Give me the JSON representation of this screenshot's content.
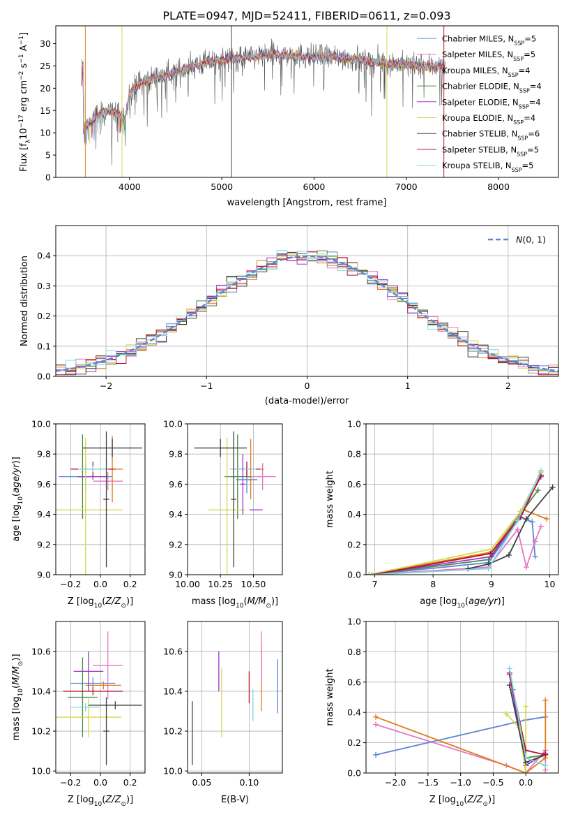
{
  "figure": {
    "title": "PLATE=0947, MJD=52411, FIBERID=0611, z=0.093"
  },
  "colors": {
    "chabrier_miles": "#5b84d6",
    "salpeter_miles": "#e377c2",
    "kroupa_miles": "#e07b1a",
    "chabrier_elodie": "#4c8a4c",
    "salpeter_elodie": "#9b30c8",
    "kroupa_elodie": "#d6d84a",
    "chabrier_stelib": "#404040",
    "salpeter_stelib": "#b2182b",
    "kroupa_stelib": "#7fd8e0"
  },
  "chart_data": [
    {
      "id": "spectrum",
      "type": "line",
      "xlabel": "wavelength [Angstrom, rest frame]",
      "ylabel": "Flux [f_λ 10^-17 erg cm^-2 s^-1 A^-1]",
      "xlim": [
        3200,
        8650
      ],
      "ylim": [
        0,
        34
      ],
      "xticks": [
        4000,
        5000,
        6000,
        7000,
        8000
      ],
      "yticks": [
        0,
        5,
        10,
        15,
        20,
        25,
        30
      ],
      "legend_position": "top-right",
      "legend": [
        {
          "key": "chabrier_miles",
          "label": "Chabrier MILES, N",
          "sub": "SSP",
          "tail": "=5"
        },
        {
          "key": "salpeter_miles",
          "label": "Salpeter MILES, N",
          "sub": "SSP",
          "tail": "=5"
        },
        {
          "key": "kroupa_miles",
          "label": "Kroupa MILES, N",
          "sub": "SSP",
          "tail": "=4"
        },
        {
          "key": "chabrier_elodie",
          "label": "Chabrier ELODIE, N",
          "sub": "SSP",
          "tail": "=4"
        },
        {
          "key": "salpeter_elodie",
          "label": "Salpeter ELODIE, N",
          "sub": "SSP",
          "tail": "=4"
        },
        {
          "key": "kroupa_elodie",
          "label": "Kroupa ELODIE, N",
          "sub": "SSP",
          "tail": "=4"
        },
        {
          "key": "chabrier_stelib",
          "label": "Chabrier STELIB, N",
          "sub": "SSP",
          "tail": "=6"
        },
        {
          "key": "salpeter_stelib",
          "label": "Salpeter STELIB, N",
          "sub": "SSP",
          "tail": "=5"
        },
        {
          "key": "kroupa_stelib",
          "label": "Kroupa STELIB, N",
          "sub": "SSP",
          "tail": "=5"
        }
      ],
      "continuum": [
        [
          3500,
          11
        ],
        [
          3600,
          13
        ],
        [
          3700,
          14.5
        ],
        [
          3800,
          15
        ],
        [
          3900,
          14
        ],
        [
          3950,
          13
        ],
        [
          4000,
          19
        ],
        [
          4100,
          21
        ],
        [
          4300,
          22.5
        ],
        [
          4500,
          23.5
        ],
        [
          4700,
          25
        ],
        [
          4900,
          26
        ],
        [
          5100,
          26.5
        ],
        [
          5300,
          27
        ],
        [
          5500,
          27.5
        ],
        [
          5700,
          27.5
        ],
        [
          6000,
          27
        ],
        [
          6300,
          27
        ],
        [
          6600,
          26
        ],
        [
          6900,
          25.5
        ],
        [
          7100,
          25
        ],
        [
          7400,
          25
        ]
      ],
      "spikes": [
        {
          "x": 5105,
          "key": "chabrier_stelib"
        },
        {
          "x": 3918,
          "key": "kroupa_elodie"
        },
        {
          "x": 6790,
          "key": "kroupa_elodie"
        },
        {
          "x": 7408,
          "key": "salpeter_stelib"
        },
        {
          "x": 3520,
          "key": "kroupa_miles"
        }
      ]
    },
    {
      "id": "residuals",
      "type": "histogram",
      "xlabel": "(data-model)/error",
      "ylabel": "Normed distribution",
      "xlim": [
        -2.5,
        2.5
      ],
      "ylim": [
        0,
        0.5
      ],
      "xticks": [
        -2,
        -1,
        0,
        1,
        2
      ],
      "yticks": [
        0.0,
        0.1,
        0.2,
        0.3,
        0.4
      ],
      "bin_width": 0.1,
      "reference_curve": {
        "label": "N(0,1)",
        "color": "#5b84d6"
      },
      "legend_position": "top-right"
    },
    {
      "id": "age-vs-z",
      "type": "scatter",
      "xlabel": "Z [log10(Z/Z⊙)]",
      "ylabel": "age [log10(age/yr)]",
      "xlim": [
        -0.3,
        0.3
      ],
      "ylim": [
        9.0,
        10.0
      ],
      "xticks": [
        -0.2,
        0.0,
        0.2
      ],
      "xticklabels": [
        "−0.2",
        "0.0",
        "0.2"
      ],
      "yticks": [
        9.0,
        9.2,
        9.4,
        9.6,
        9.8,
        10.0
      ],
      "points": [
        {
          "key": "chabrier_miles",
          "x": -0.1,
          "y": 9.65,
          "xerr": 0.18,
          "yerr": 0.1
        },
        {
          "key": "salpeter_miles",
          "x": 0.05,
          "y": 9.62,
          "xerr": 0.1,
          "yerr": 0.06
        },
        {
          "key": "kroupa_miles",
          "x": 0.08,
          "y": 9.7,
          "xerr": 0.07,
          "yerr": 0.22
        },
        {
          "key": "chabrier_elodie",
          "x": -0.12,
          "y": 9.65,
          "xerr": 0.04,
          "yerr": 0.28
        },
        {
          "key": "salpeter_elodie",
          "x": -0.05,
          "y": 9.65,
          "xerr": 0.1,
          "yerr": 0.02
        },
        {
          "key": "kroupa_elodie",
          "x": -0.1,
          "y": 9.43,
          "xerr": 0.25,
          "yerr": 0.48
        },
        {
          "key": "chabrier_stelib",
          "x": 0.08,
          "y": 9.84,
          "xerr": 0.2,
          "yerr": 0.06
        },
        {
          "key": "salpeter_stelib",
          "x": -0.05,
          "y": 9.7,
          "xerr": 0.15,
          "yerr": 0.05
        },
        {
          "key": "kroupa_stelib",
          "x": -0.05,
          "y": 9.7,
          "xerr": 0.1,
          "yerr": 0.02
        },
        {
          "key": "chabrier_stelib",
          "x": 0.04,
          "y": 9.5,
          "xerr": 0.02,
          "yerr": 0.45
        }
      ]
    },
    {
      "id": "age-vs-mass",
      "type": "scatter",
      "xlabel": "mass [log10(M/M⊙)]",
      "xlim": [
        10.0,
        10.72
      ],
      "ylim": [
        9.0,
        10.0
      ],
      "xticks": [
        10.0,
        10.25,
        10.5
      ],
      "xticklabels": [
        "10.00",
        "10.25",
        "10.50"
      ],
      "yticks": [
        9.0,
        9.2,
        9.4,
        9.6,
        9.8,
        10.0
      ],
      "points": [
        {
          "key": "chabrier_miles",
          "x": 10.45,
          "y": 9.63,
          "xerr": 0.08,
          "yerr": 0.09
        },
        {
          "key": "salpeter_miles",
          "x": 10.57,
          "y": 9.65,
          "xerr": 0.1,
          "yerr": 0.09
        },
        {
          "key": "kroupa_miles",
          "x": 10.48,
          "y": 9.7,
          "xerr": 0.1,
          "yerr": 0.2
        },
        {
          "key": "chabrier_elodie",
          "x": 10.38,
          "y": 9.65,
          "xerr": 0.1,
          "yerr": 0.28
        },
        {
          "key": "salpeter_elodie",
          "x": 10.52,
          "y": 9.43,
          "xerr": 0.05,
          "yerr": 0.0
        },
        {
          "key": "kroupa_elodie",
          "x": 10.3,
          "y": 9.43,
          "xerr": 0.14,
          "yerr": 0.48
        },
        {
          "key": "chabrier_stelib",
          "x": 10.25,
          "y": 9.84,
          "xerr": 0.2,
          "yerr": 0.06
        },
        {
          "key": "salpeter_stelib",
          "x": 10.45,
          "y": 9.7,
          "xerr": 0.1,
          "yerr": 0.05
        },
        {
          "key": "kroupa_stelib",
          "x": 10.42,
          "y": 9.7,
          "xerr": 0.1,
          "yerr": 0.02
        },
        {
          "key": "chabrier_stelib",
          "x": 10.35,
          "y": 9.5,
          "xerr": 0.02,
          "yerr": 0.45
        },
        {
          "key": "salpeter_elodie",
          "x": 10.42,
          "y": 9.6,
          "xerr": 0.02,
          "yerr": 0.2
        }
      ]
    },
    {
      "id": "mass-weight-vs-age",
      "type": "line",
      "xlabel": "age [log10(age/yr)]",
      "ylabel": "mass weight",
      "xlim": [
        6.85,
        10.15
      ],
      "ylim": [
        0,
        1.0
      ],
      "xticks": [
        7,
        8,
        9,
        10
      ],
      "yticks": [
        0.0,
        0.2,
        0.4,
        0.6,
        0.8,
        1.0
      ],
      "yticklabels": [
        "0.0",
        "0.2",
        "0.4",
        "0.6",
        "0.8",
        "1.0"
      ],
      "series": [
        {
          "key": "chabrier_miles",
          "x": [
            6.9,
            8.95,
            9.5,
            9.7,
            9.75
          ],
          "y": [
            0.0,
            0.08,
            0.38,
            0.35,
            0.12
          ]
        },
        {
          "key": "salpeter_miles",
          "x": [
            6.9,
            8.95,
            9.45,
            9.6,
            9.75,
            9.85
          ],
          "y": [
            0.0,
            0.05,
            0.3,
            0.05,
            0.22,
            0.32
          ]
        },
        {
          "key": "kroupa_miles",
          "x": [
            6.9,
            9.0,
            9.55,
            9.95
          ],
          "y": [
            0.0,
            0.15,
            0.43,
            0.37
          ]
        },
        {
          "key": "chabrier_elodie",
          "x": [
            6.9,
            8.95,
            9.4,
            9.8
          ],
          "y": [
            0.0,
            0.1,
            0.35,
            0.56
          ]
        },
        {
          "key": "salpeter_elodie",
          "x": [
            6.9,
            9.0,
            9.5,
            9.85
          ],
          "y": [
            0.0,
            0.12,
            0.4,
            0.65
          ]
        },
        {
          "key": "kroupa_elodie",
          "x": [
            6.9,
            9.0,
            9.5,
            9.85
          ],
          "y": [
            0.0,
            0.17,
            0.42,
            0.68
          ]
        },
        {
          "key": "chabrier_stelib",
          "x": [
            8.6,
            8.95,
            9.3,
            9.6,
            10.05
          ],
          "y": [
            0.04,
            0.07,
            0.13,
            0.37,
            0.58
          ]
        },
        {
          "key": "salpeter_stelib",
          "x": [
            6.95,
            8.98,
            9.5,
            9.85
          ],
          "y": [
            0.0,
            0.14,
            0.38,
            0.66
          ]
        },
        {
          "key": "kroupa_stelib",
          "x": [
            6.95,
            8.95,
            9.45,
            9.85
          ],
          "y": [
            0.0,
            0.04,
            0.36,
            0.69
          ]
        }
      ]
    },
    {
      "id": "mass-vs-z",
      "type": "scatter",
      "xlabel": "Z [log10(Z/Z⊙)]",
      "ylabel": "mass [log10(M/M⊙)]",
      "xlim": [
        -0.3,
        0.3
      ],
      "ylim": [
        9.99,
        10.75
      ],
      "xticks": [
        -0.2,
        0.0,
        0.2
      ],
      "xticklabels": [
        "−0.2",
        "0.0",
        "0.2"
      ],
      "yticks": [
        10.0,
        10.2,
        10.4,
        10.6
      ],
      "points": [
        {
          "key": "chabrier_miles",
          "x": -0.05,
          "y": 10.44,
          "xerr": 0.15,
          "yerr": 0.03
        },
        {
          "key": "salpeter_miles",
          "x": 0.05,
          "y": 10.53,
          "xerr": 0.1,
          "yerr": 0.17
        },
        {
          "key": "kroupa_miles",
          "x": 0.02,
          "y": 10.43,
          "xerr": 0.12,
          "yerr": 0.02
        },
        {
          "key": "chabrier_elodie",
          "x": -0.12,
          "y": 10.37,
          "xerr": 0.1,
          "yerr": 0.2
        },
        {
          "key": "salpeter_elodie",
          "x": -0.08,
          "y": 10.5,
          "xerr": 0.1,
          "yerr": 0.1
        },
        {
          "key": "kroupa_elodie",
          "x": -0.08,
          "y": 10.27,
          "xerr": 0.22,
          "yerr": 0.1
        },
        {
          "key": "chabrier_stelib",
          "x": 0.1,
          "y": 10.33,
          "xerr": 0.18,
          "yerr": 0.02
        },
        {
          "key": "salpeter_stelib",
          "x": -0.05,
          "y": 10.4,
          "xerr": 0.2,
          "yerr": 0.02
        },
        {
          "key": "kroupa_stelib",
          "x": -0.1,
          "y": 10.32,
          "xerr": 0.1,
          "yerr": 0.02
        },
        {
          "key": "chabrier_stelib",
          "x": 0.04,
          "y": 10.2,
          "xerr": 0.02,
          "yerr": 0.17
        }
      ]
    },
    {
      "id": "ebv",
      "type": "errorbar",
      "xlabel": "E(B-V)",
      "xlim": [
        0.035,
        0.135
      ],
      "ylim": [
        9.99,
        10.75
      ],
      "xticks": [
        0.05,
        0.1
      ],
      "xticklabels": [
        "0.05",
        "0.10"
      ],
      "yticks": [
        10.0,
        10.2,
        10.4,
        10.6
      ],
      "points": [
        {
          "key": "chabrier_stelib",
          "x": 0.04,
          "y0": 10.03,
          "y1": 10.35
        },
        {
          "key": "salpeter_elodie",
          "x": 0.068,
          "y0": 10.4,
          "y1": 10.6
        },
        {
          "key": "kroupa_elodie",
          "x": 0.071,
          "y0": 10.17,
          "y1": 10.52
        },
        {
          "key": "salpeter_stelib",
          "x": 0.1,
          "y0": 10.34,
          "y1": 10.5
        },
        {
          "key": "kroupa_stelib",
          "x": 0.104,
          "y0": 10.25,
          "y1": 10.41
        },
        {
          "key": "kroupa_miles",
          "x": 0.113,
          "y0": 10.3,
          "y1": 10.63
        },
        {
          "key": "salpeter_miles",
          "x": 0.113,
          "y0": 10.45,
          "y1": 10.7
        },
        {
          "key": "chabrier_miles",
          "x": 0.13,
          "y0": 10.29,
          "y1": 10.56
        }
      ]
    },
    {
      "id": "mass-weight-vs-z",
      "type": "line",
      "xlabel": "Z [log10(Z/Z⊙)]",
      "ylabel": "mass weight",
      "xlim": [
        -2.45,
        0.5
      ],
      "ylim": [
        0,
        1.0
      ],
      "xticks": [
        -2.0,
        -1.5,
        -1.0,
        -0.5,
        0.0
      ],
      "xticklabels": [
        "−2.0",
        "−1.5",
        "−1.0",
        "−0.5",
        "0.0"
      ],
      "yticks": [
        0.0,
        0.2,
        0.4,
        0.6,
        0.8,
        1.0
      ],
      "yticklabels": [
        "0.0",
        "0.2",
        "0.4",
        "0.6",
        "0.8",
        "1.0"
      ],
      "series": [
        {
          "key": "chabrier_miles",
          "x": [
            -2.3,
            0.0,
            0.3
          ],
          "y": [
            0.12,
            0.35,
            0.37
          ]
        },
        {
          "key": "salpeter_miles",
          "x": [
            -2.3,
            -0.3,
            0.0,
            0.3,
            0.3
          ],
          "y": [
            0.32,
            0.05,
            0.0,
            0.15,
            0.02
          ]
        },
        {
          "key": "kroupa_miles",
          "x": [
            -2.3,
            0.0,
            0.3,
            0.3
          ],
          "y": [
            0.37,
            0.0,
            0.1,
            0.48
          ]
        },
        {
          "key": "chabrier_elodie",
          "x": [
            -0.2,
            0.0,
            0.3
          ],
          "y": [
            0.55,
            0.1,
            0.12
          ]
        },
        {
          "key": "salpeter_elodie",
          "x": [
            -0.25,
            0.0,
            0.3
          ],
          "y": [
            0.65,
            0.05,
            0.13
          ]
        },
        {
          "key": "kroupa_elodie",
          "x": [
            -0.3,
            -0.1,
            0.0,
            0.0
          ],
          "y": [
            0.39,
            0.3,
            0.0,
            0.44
          ]
        },
        {
          "key": "chabrier_stelib",
          "x": [
            -0.25,
            0.0,
            0.3
          ],
          "y": [
            0.58,
            0.07,
            0.12
          ]
        },
        {
          "key": "salpeter_stelib",
          "x": [
            -0.25,
            0.0,
            0.3
          ],
          "y": [
            0.66,
            0.15,
            0.12
          ]
        },
        {
          "key": "kroupa_stelib",
          "x": [
            -0.25,
            0.0,
            0.3
          ],
          "y": [
            0.69,
            0.1,
            0.05
          ]
        }
      ]
    }
  ]
}
